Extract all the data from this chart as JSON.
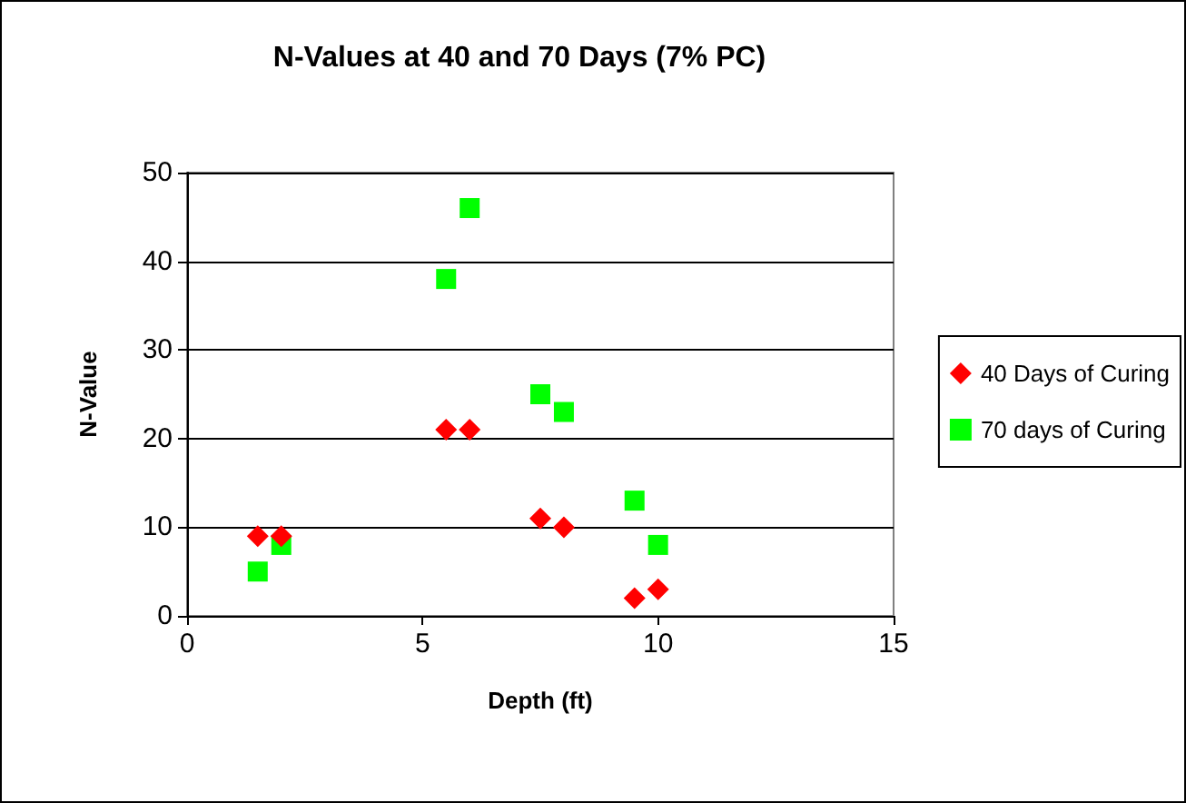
{
  "chart_data": {
    "type": "scatter",
    "title": "N-Values at 40 and 70 Days (7% PC)",
    "xlabel": "Depth (ft)",
    "ylabel": "N-Value",
    "xlim": [
      0,
      15
    ],
    "xticks": [
      0,
      5,
      10,
      15
    ],
    "ylim": [
      0,
      50
    ],
    "yticks": [
      0,
      10,
      20,
      30,
      40,
      50
    ],
    "grid": "y",
    "legend": "right",
    "series": [
      {
        "name": "40 Days of Curing",
        "color": "#ff0000",
        "marker": "diamond",
        "x": [
          1.5,
          2,
          5.5,
          6,
          7.5,
          8,
          9.5,
          10
        ],
        "values": [
          9,
          9,
          21,
          21,
          11,
          10,
          2,
          3
        ]
      },
      {
        "name": "70 days of Curing",
        "color": "#00ff00",
        "marker": "square",
        "x": [
          1.5,
          2,
          5.5,
          6,
          7.5,
          8,
          9.5,
          10
        ],
        "values": [
          5,
          8,
          38,
          46,
          25,
          23,
          13,
          8
        ]
      }
    ]
  }
}
